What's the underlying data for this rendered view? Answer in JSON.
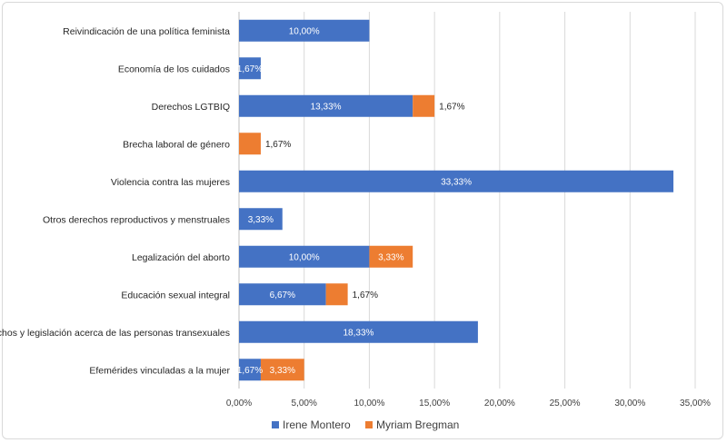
{
  "chart_data": {
    "type": "bar",
    "orientation": "horizontal",
    "stacked": true,
    "title": "",
    "xlabel": "",
    "ylabel": "",
    "xlim": [
      0,
      35
    ],
    "x_ticks": [
      "0,00%",
      "5,00%",
      "10,00%",
      "15,00%",
      "20,00%",
      "25,00%",
      "30,00%",
      "35,00%"
    ],
    "x_tick_values": [
      0,
      5,
      10,
      15,
      20,
      25,
      30,
      35
    ],
    "grid": true,
    "legend_position": "bottom",
    "categories": [
      "Reivindicación de una política feminista",
      "Economía de los cuidados",
      "Derechos LGTBIQ",
      "Brecha laboral de género",
      "Violencia contra las mujeres",
      "Otros derechos reproductivos y menstruales",
      "Legalización del aborto",
      "Educación sexual integral",
      "Derechos y legislación acerca de las personas transexuales",
      "Efemérides vinculadas a la mujer"
    ],
    "series": [
      {
        "name": "Irene Montero",
        "color": "#4472C4",
        "values": [
          10.0,
          1.67,
          13.33,
          0,
          33.33,
          3.33,
          10.0,
          6.67,
          18.33,
          1.67
        ],
        "labels": [
          "10,00%",
          "1,67%",
          "13,33%",
          "",
          "33,33%",
          "3,33%",
          "10,00%",
          "6,67%",
          "18,33%",
          "1,67%"
        ]
      },
      {
        "name": "Myriam Bregman",
        "color": "#ED7D31",
        "values": [
          0,
          0,
          1.67,
          1.67,
          0,
          0,
          3.33,
          1.67,
          0,
          3.33
        ],
        "labels": [
          "",
          "",
          "1,67%",
          "1,67%",
          "",
          "",
          "3,33%",
          "1,67%",
          "",
          "3,33%"
        ],
        "label_outside": [
          false,
          false,
          true,
          true,
          false,
          false,
          false,
          true,
          false,
          false
        ]
      }
    ]
  }
}
